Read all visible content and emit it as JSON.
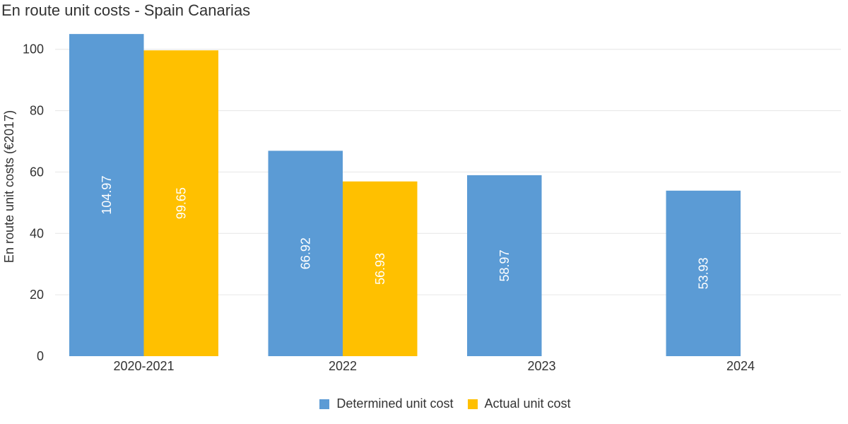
{
  "chart_data": {
    "type": "bar",
    "title": "En route unit costs - Spain Canarias",
    "ylabel": "En route unit costs (€2017)",
    "xlabel": "",
    "categories": [
      "2020-2021",
      "2022",
      "2023",
      "2024"
    ],
    "series": [
      {
        "name": "Determined unit cost",
        "color": "#5b9bd5",
        "values": [
          104.97,
          66.92,
          58.97,
          53.93
        ]
      },
      {
        "name": "Actual unit cost",
        "color": "#ffc000",
        "values": [
          99.65,
          56.93,
          null,
          null
        ]
      }
    ],
    "ylim": [
      0,
      105
    ],
    "yticks": [
      0,
      20,
      40,
      60,
      80,
      100
    ],
    "grid": true,
    "legend_position": "bottom"
  }
}
